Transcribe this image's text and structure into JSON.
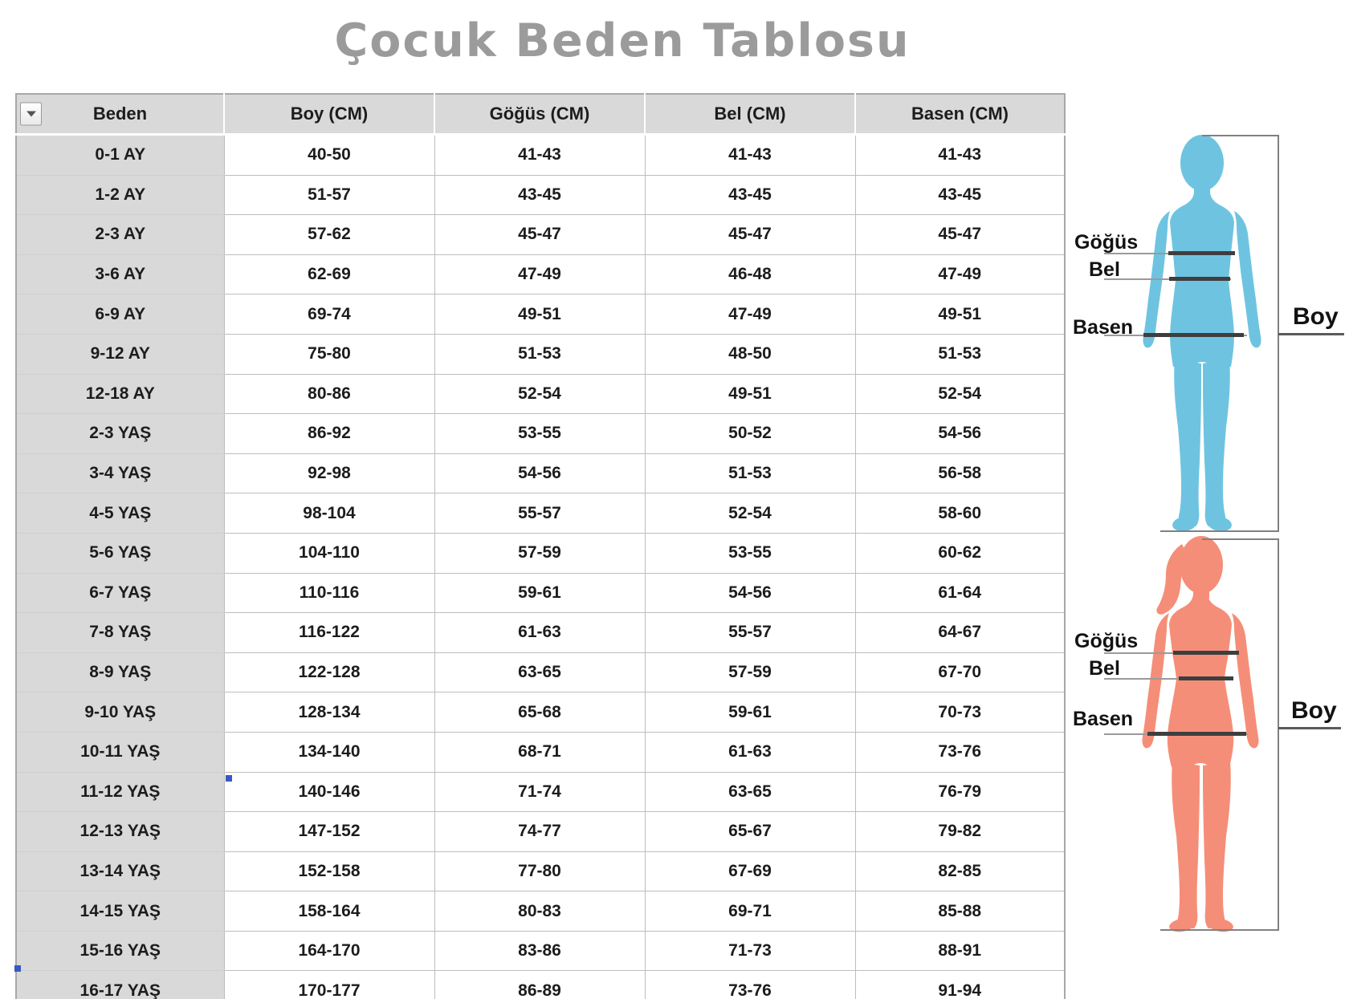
{
  "title": "Çocuk Beden Tablosu",
  "table": {
    "filter_icon": "dropdown-arrow",
    "headers": [
      "Beden",
      "Boy (CM)",
      "Göğüs (CM)",
      "Bel (CM)",
      "Basen (CM)"
    ],
    "rows": [
      [
        "0-1 AY",
        "40-50",
        "41-43",
        "41-43",
        "41-43"
      ],
      [
        "1-2 AY",
        "51-57",
        "43-45",
        "43-45",
        "43-45"
      ],
      [
        "2-3 AY",
        "57-62",
        "45-47",
        "45-47",
        "45-47"
      ],
      [
        "3-6 AY",
        "62-69",
        "47-49",
        "46-48",
        "47-49"
      ],
      [
        "6-9 AY",
        "69-74",
        "49-51",
        "47-49",
        "49-51"
      ],
      [
        "9-12 AY",
        "75-80",
        "51-53",
        "48-50",
        "51-53"
      ],
      [
        "12-18 AY",
        "80-86",
        "52-54",
        "49-51",
        "52-54"
      ],
      [
        "2-3 YAŞ",
        "86-92",
        "53-55",
        "50-52",
        "54-56"
      ],
      [
        "3-4 YAŞ",
        "92-98",
        "54-56",
        "51-53",
        "56-58"
      ],
      [
        "4-5 YAŞ",
        "98-104",
        "55-57",
        "52-54",
        "58-60"
      ],
      [
        "5-6 YAŞ",
        "104-110",
        "57-59",
        "53-55",
        "60-62"
      ],
      [
        "6-7 YAŞ",
        "110-116",
        "59-61",
        "54-56",
        "61-64"
      ],
      [
        "7-8 YAŞ",
        "116-122",
        "61-63",
        "55-57",
        "64-67"
      ],
      [
        "8-9 YAŞ",
        "122-128",
        "63-65",
        "57-59",
        "67-70"
      ],
      [
        "9-10 YAŞ",
        "128-134",
        "65-68",
        "59-61",
        "70-73"
      ],
      [
        "10-11 YAŞ",
        "134-140",
        "68-71",
        "61-63",
        "73-76"
      ],
      [
        "11-12 YAŞ",
        "140-146",
        "71-74",
        "63-65",
        "76-79"
      ],
      [
        "12-13 YAŞ",
        "147-152",
        "74-77",
        "65-67",
        "79-82"
      ],
      [
        "13-14 YAŞ",
        "152-158",
        "77-80",
        "67-69",
        "82-85"
      ],
      [
        "14-15 YAŞ",
        "158-164",
        "80-83",
        "69-71",
        "85-88"
      ],
      [
        "15-16 YAŞ",
        "164-170",
        "83-86",
        "71-73",
        "88-91"
      ],
      [
        "16-17 YAŞ",
        "170-177",
        "86-89",
        "73-76",
        "91-94"
      ]
    ]
  },
  "figure_labels": {
    "chest": "Göğüs",
    "waist": "Bel",
    "hips": "Basen",
    "height": "Boy"
  },
  "colors": {
    "boy_figure": "#6ec4e0",
    "girl_figure": "#f58e78",
    "title": "#9b9b9b",
    "header_bg": "#d9d9d9",
    "measure_line": "#3e3e3e",
    "selection_marker": "#3a57c4"
  }
}
